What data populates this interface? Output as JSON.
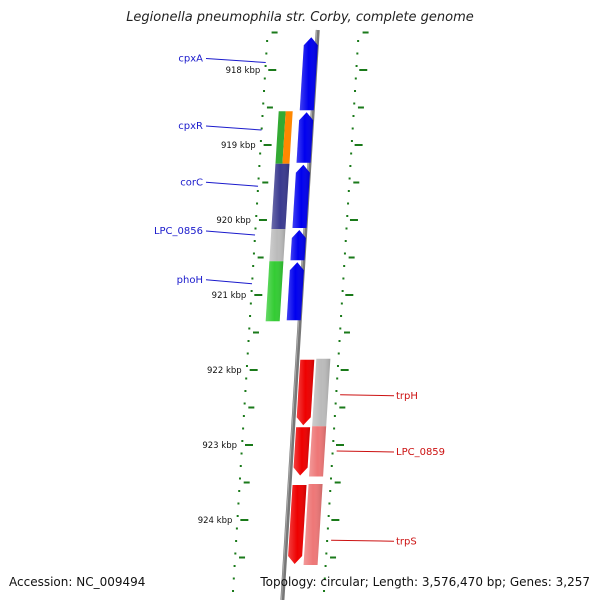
{
  "title": "Legionella pneumophila str. Corby, complete genome",
  "footer": {
    "accession": "Accession: NC_009494",
    "topology": "Topology: circular; Length: 3,576,470 bp; Genes: 3,257"
  },
  "colors": {
    "forward_gene": "#0000ee",
    "reverse_gene": "#ee0000",
    "backbone": "#777777",
    "tick": "#1a7a1a",
    "forward_label": "#1a1acc",
    "reverse_label": "#cc1111"
  },
  "ruler": {
    "ticks": [
      {
        "pos_kbp": 918,
        "label": "918 kbp"
      },
      {
        "pos_kbp": 919,
        "label": "919 kbp"
      },
      {
        "pos_kbp": 920,
        "label": "920 kbp"
      },
      {
        "pos_kbp": 921,
        "label": "921 kbp"
      },
      {
        "pos_kbp": 922,
        "label": "922 kbp"
      },
      {
        "pos_kbp": 923,
        "label": "923 kbp"
      },
      {
        "pos_kbp": 924,
        "label": "924 kbp"
      }
    ]
  },
  "genes": [
    {
      "name": "cpxA",
      "strand": "+",
      "start_kbp": 917.55,
      "end_kbp": 918.55,
      "color": "#0000ee"
    },
    {
      "name": "cpxR",
      "strand": "+",
      "start_kbp": 918.55,
      "end_kbp": 919.25,
      "color": "#0000ee"
    },
    {
      "name": "corC",
      "strand": "+",
      "start_kbp": 919.25,
      "end_kbp": 920.12,
      "color": "#0000ee"
    },
    {
      "name": "LPC_0856",
      "strand": "+",
      "start_kbp": 920.12,
      "end_kbp": 920.55,
      "color": "#0000ee"
    },
    {
      "name": "phoH",
      "strand": "+",
      "start_kbp": 920.55,
      "end_kbp": 921.35,
      "color": "#0000ee"
    },
    {
      "name": "trpH",
      "strand": "-",
      "start_kbp": 921.85,
      "end_kbp": 922.75,
      "color": "#ee0000"
    },
    {
      "name": "LPC_0859",
      "strand": "-",
      "start_kbp": 922.75,
      "end_kbp": 923.42,
      "color": "#ee0000"
    },
    {
      "name": "trpS",
      "strand": "-",
      "start_kbp": 923.52,
      "end_kbp": 924.6,
      "color": "#ee0000"
    }
  ],
  "analysis_tracks": [
    {
      "name": "cpxR",
      "colors": [
        "#33aa33",
        "#ff8800"
      ],
      "start_kbp": 918.55,
      "end_kbp": 919.25
    },
    {
      "name": "corC",
      "colors": [
        "#3a3a8f"
      ],
      "start_kbp": 919.25,
      "end_kbp": 920.12
    },
    {
      "name": "LPC_0856",
      "colors": [
        "#bbbbbb"
      ],
      "start_kbp": 920.12,
      "end_kbp": 920.55
    },
    {
      "name": "phoH",
      "colors": [
        "#33cc33"
      ],
      "start_kbp": 920.55,
      "end_kbp": 921.35
    },
    {
      "name": "trpH",
      "colors": [
        "#bbbbbb"
      ],
      "start_kbp": 921.85,
      "end_kbp": 922.75
    },
    {
      "name": "LPC_0859",
      "colors": [
        "#ee7777"
      ],
      "start_kbp": 922.75,
      "end_kbp": 923.42
    },
    {
      "name": "trpS",
      "colors": [
        "#ee7777"
      ],
      "start_kbp": 923.52,
      "end_kbp": 924.6
    }
  ],
  "gene_labels": [
    {
      "text": "cpxA",
      "strand": "+",
      "at_kbp": 917.9
    },
    {
      "text": "cpxR",
      "strand": "+",
      "at_kbp": 918.8
    },
    {
      "text": "corC",
      "strand": "+",
      "at_kbp": 919.55
    },
    {
      "text": "LPC_0856",
      "strand": "+",
      "at_kbp": 920.2
    },
    {
      "text": "phoH",
      "strand": "+",
      "at_kbp": 920.85
    },
    {
      "text": "trpH",
      "strand": "-",
      "at_kbp": 922.33
    },
    {
      "text": "LPC_0859",
      "strand": "-",
      "at_kbp": 923.08
    },
    {
      "text": "trpS",
      "strand": "-",
      "at_kbp": 924.27
    }
  ]
}
